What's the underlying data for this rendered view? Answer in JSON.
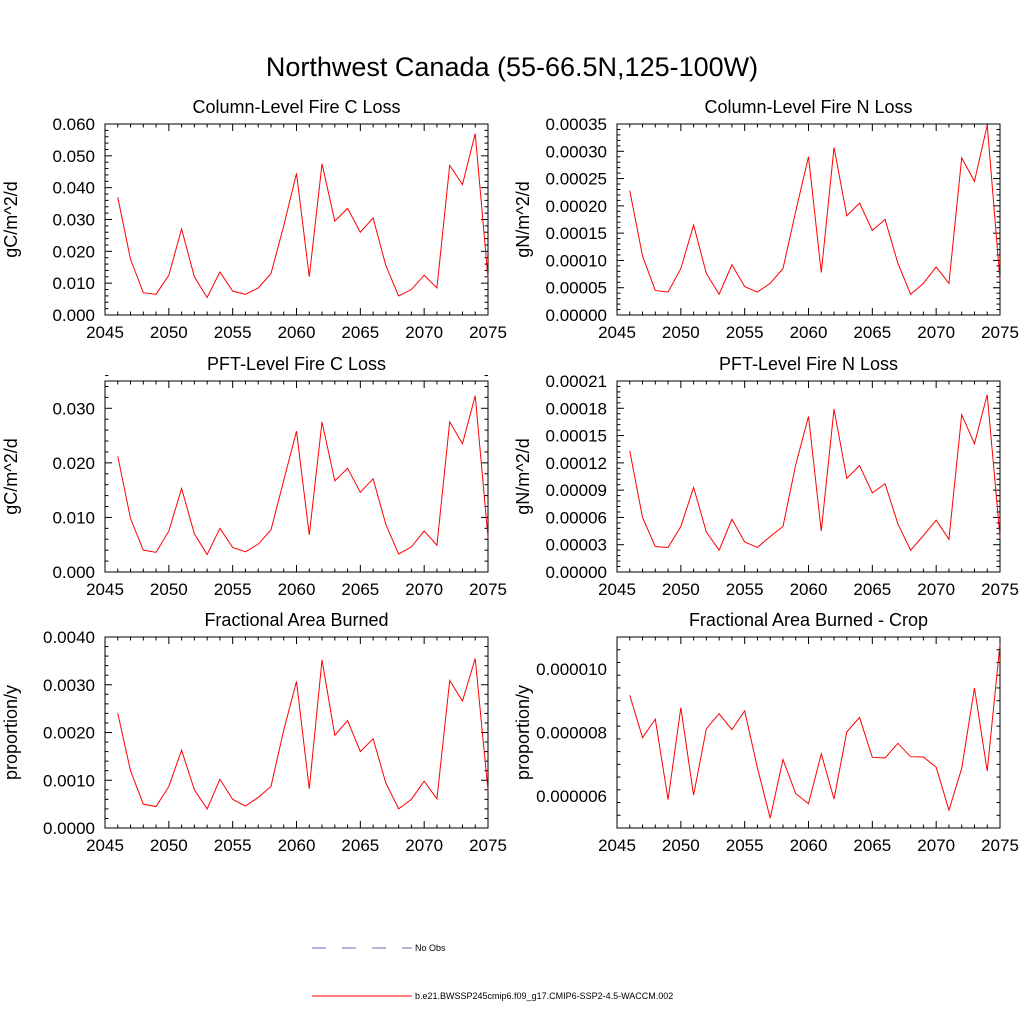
{
  "title": "Northwest Canada (55-66.5N,125-100W)",
  "legend": [
    {
      "label": "No Obs",
      "color": "#6a6ab0",
      "style": "dashed"
    },
    {
      "label": "b.e21.BWSSP245cmip6.f09_g17.CMIP6-SSP2-4.5-WACCM.002",
      "color": "#ff0000",
      "style": "solid"
    }
  ],
  "chart_data": [
    {
      "type": "line",
      "title": "Column-Level Fire C Loss",
      "ylabel": "gC/m^2/d",
      "xlim": [
        2045,
        2075
      ],
      "ylim": [
        0,
        0.06
      ],
      "xticks": [
        2045,
        2050,
        2055,
        2060,
        2065,
        2070,
        2075
      ],
      "yticks": [
        0,
        0.01,
        0.02,
        0.03,
        0.04,
        0.05,
        0.06
      ],
      "ytick_labels": [
        "0.000",
        "0.010",
        "0.020",
        "0.030",
        "0.040",
        "0.050",
        "0.060"
      ],
      "x": [
        2046,
        2047,
        2048,
        2049,
        2050,
        2051,
        2052,
        2053,
        2054,
        2055,
        2056,
        2057,
        2058,
        2059,
        2060,
        2061,
        2062,
        2063,
        2064,
        2065,
        2066,
        2067,
        2068,
        2069,
        2070,
        2071,
        2072,
        2073,
        2074,
        2075
      ],
      "series": [
        {
          "color": "#ff0000",
          "values": [
            0.037,
            0.0175,
            0.007,
            0.0065,
            0.0125,
            0.027,
            0.012,
            0.0055,
            0.0135,
            0.0075,
            0.0065,
            0.0085,
            0.013,
            0.028,
            0.0445,
            0.012,
            0.0475,
            0.0295,
            0.0335,
            0.026,
            0.0305,
            0.0155,
            0.006,
            0.008,
            0.0125,
            0.0085,
            0.047,
            0.041,
            0.057,
            0.0115
          ]
        }
      ]
    },
    {
      "type": "line",
      "title": "Column-Level Fire N Loss",
      "ylabel": "gN/m^2/d",
      "xlim": [
        2045,
        2075
      ],
      "ylim": [
        0,
        0.00035
      ],
      "xticks": [
        2045,
        2050,
        2055,
        2060,
        2065,
        2070,
        2075
      ],
      "yticks": [
        0,
        5e-05,
        0.0001,
        0.00015,
        0.0002,
        0.00025,
        0.0003,
        0.00035
      ],
      "ytick_labels": [
        "0.00000",
        "0.00005",
        "0.00010",
        "0.00015",
        "0.00020",
        "0.00025",
        "0.00030",
        "0.00035"
      ],
      "x": [
        2046,
        2047,
        2048,
        2049,
        2050,
        2051,
        2052,
        2053,
        2054,
        2055,
        2056,
        2057,
        2058,
        2059,
        2060,
        2061,
        2062,
        2063,
        2064,
        2065,
        2066,
        2067,
        2068,
        2069,
        2070,
        2071,
        2072,
        2073,
        2074,
        2075
      ],
      "series": [
        {
          "color": "#ff0000",
          "values": [
            0.000228,
            0.000108,
            4.5e-05,
            4.2e-05,
            8.5e-05,
            0.000165,
            7.6e-05,
            3.8e-05,
            9.2e-05,
            5.2e-05,
            4.2e-05,
            5.8e-05,
            8.5e-05,
            0.00019,
            0.00029,
            7.8e-05,
            0.000307,
            0.000182,
            0.000205,
            0.000155,
            0.000175,
            9.5e-05,
            3.8e-05,
            5.8e-05,
            8.8e-05,
            5.8e-05,
            0.000288,
            0.000245,
            0.000348,
            6.3e-05
          ]
        }
      ]
    },
    {
      "type": "line",
      "title": "PFT-Level Fire C Loss",
      "ylabel": "gC/m^2/d",
      "xlim": [
        2045,
        2075
      ],
      "ylim": [
        0,
        0.035
      ],
      "xticks": [
        2045,
        2050,
        2055,
        2060,
        2065,
        2070,
        2075
      ],
      "yticks": [
        0,
        0.01,
        0.02,
        0.03
      ],
      "ytick_labels": [
        "0.000",
        "0.010",
        "0.020",
        "0.030"
      ],
      "x": [
        2046,
        2047,
        2048,
        2049,
        2050,
        2051,
        2052,
        2053,
        2054,
        2055,
        2056,
        2057,
        2058,
        2059,
        2060,
        2061,
        2062,
        2063,
        2064,
        2065,
        2066,
        2067,
        2068,
        2069,
        2070,
        2071,
        2072,
        2073,
        2074,
        2075
      ],
      "series": [
        {
          "color": "#ff0000",
          "values": [
            0.0212,
            0.0098,
            0.004,
            0.0036,
            0.0075,
            0.0153,
            0.007,
            0.0032,
            0.008,
            0.0045,
            0.0037,
            0.0051,
            0.0077,
            0.0168,
            0.0258,
            0.0068,
            0.0275,
            0.0167,
            0.019,
            0.0146,
            0.0171,
            0.0087,
            0.0033,
            0.0046,
            0.0075,
            0.0049,
            0.0275,
            0.0235,
            0.0323,
            0.0063
          ]
        }
      ]
    },
    {
      "type": "line",
      "title": "PFT-Level Fire N Loss",
      "ylabel": "gN/m^2/d",
      "xlim": [
        2045,
        2075
      ],
      "ylim": [
        0,
        0.00021
      ],
      "xticks": [
        2045,
        2050,
        2055,
        2060,
        2065,
        2070,
        2075
      ],
      "yticks": [
        0,
        3e-05,
        6e-05,
        9e-05,
        0.00012,
        0.00015,
        0.00018,
        0.00021
      ],
      "ytick_labels": [
        "0.00000",
        "0.00003",
        "0.00006",
        "0.00009",
        "0.00012",
        "0.00015",
        "0.00018",
        "0.00021"
      ],
      "x": [
        2046,
        2047,
        2048,
        2049,
        2050,
        2051,
        2052,
        2053,
        2054,
        2055,
        2056,
        2057,
        2058,
        2059,
        2060,
        2061,
        2062,
        2063,
        2064,
        2065,
        2066,
        2067,
        2068,
        2069,
        2070,
        2071,
        2072,
        2073,
        2074,
        2075
      ],
      "series": [
        {
          "color": "#ff0000",
          "values": [
            0.000133,
            6e-05,
            2.8e-05,
            2.7e-05,
            5e-05,
            9.3e-05,
            4.4e-05,
            2.4e-05,
            5.8e-05,
            3.3e-05,
            2.7e-05,
            3.9e-05,
            5e-05,
            0.000118,
            0.000171,
            4.5e-05,
            0.000179,
            0.000103,
            0.000117,
            8.7e-05,
            9.7e-05,
            5.3e-05,
            2.4e-05,
            4e-05,
            5.7e-05,
            3.6e-05,
            0.000173,
            0.000141,
            0.000195,
            3.8e-05
          ]
        }
      ]
    },
    {
      "type": "line",
      "title": "Fractional Area Burned",
      "ylabel": "proportion/y",
      "xlim": [
        2045,
        2075
      ],
      "ylim": [
        0,
        0.004
      ],
      "xticks": [
        2045,
        2050,
        2055,
        2060,
        2065,
        2070,
        2075
      ],
      "yticks": [
        0,
        0.001,
        0.002,
        0.003,
        0.004
      ],
      "ytick_labels": [
        "0.0000",
        "0.0010",
        "0.0020",
        "0.0030",
        "0.0040"
      ],
      "x": [
        2046,
        2047,
        2048,
        2049,
        2050,
        2051,
        2052,
        2053,
        2054,
        2055,
        2056,
        2057,
        2058,
        2059,
        2060,
        2061,
        2062,
        2063,
        2064,
        2065,
        2066,
        2067,
        2068,
        2069,
        2070,
        2071,
        2072,
        2073,
        2074,
        2075
      ],
      "series": [
        {
          "color": "#ff0000",
          "values": [
            0.0024,
            0.0012,
            0.0005,
            0.00045,
            0.00087,
            0.00163,
            0.0008,
            0.0004,
            0.00102,
            0.0006,
            0.00046,
            0.00064,
            0.00087,
            0.00205,
            0.00307,
            0.00082,
            0.00352,
            0.00194,
            0.00225,
            0.0016,
            0.00187,
            0.00094,
            0.0004,
            0.0006,
            0.00098,
            0.00061,
            0.00309,
            0.00266,
            0.00355,
            0.00078
          ]
        }
      ]
    },
    {
      "type": "line",
      "title": "Fractional Area Burned - Crop",
      "ylabel": "proportion/y",
      "xlim": [
        2045,
        2075
      ],
      "ylim": [
        5e-06,
        1.1e-05
      ],
      "xticks": [
        2045,
        2050,
        2055,
        2060,
        2065,
        2070,
        2075
      ],
      "yticks": [
        6e-06,
        8e-06,
        1e-05
      ],
      "ytick_labels": [
        "0.000006",
        "0.000008",
        "0.000010"
      ],
      "x": [
        2046,
        2047,
        2048,
        2049,
        2050,
        2051,
        2052,
        2053,
        2054,
        2055,
        2056,
        2057,
        2058,
        2059,
        2060,
        2061,
        2062,
        2063,
        2064,
        2065,
        2066,
        2067,
        2068,
        2069,
        2070,
        2071,
        2072,
        2073,
        2074,
        2075
      ],
      "series": [
        {
          "color": "#ff0000",
          "values": [
            9.17e-06,
            7.84e-06,
            8.42e-06,
            5.89e-06,
            8.78e-06,
            6.03e-06,
            8.12e-06,
            8.59e-06,
            8.09e-06,
            8.68e-06,
            6.89e-06,
            5.31e-06,
            7.15e-06,
            6.08e-06,
            5.76e-06,
            7.33e-06,
            5.91e-06,
            8.02e-06,
            8.47e-06,
            7.22e-06,
            7.2e-06,
            7.66e-06,
            7.24e-06,
            7.23e-06,
            6.91e-06,
            5.56e-06,
            6.87e-06,
            9.4e-06,
            6.79e-06,
            1.078e-05
          ]
        }
      ]
    }
  ]
}
